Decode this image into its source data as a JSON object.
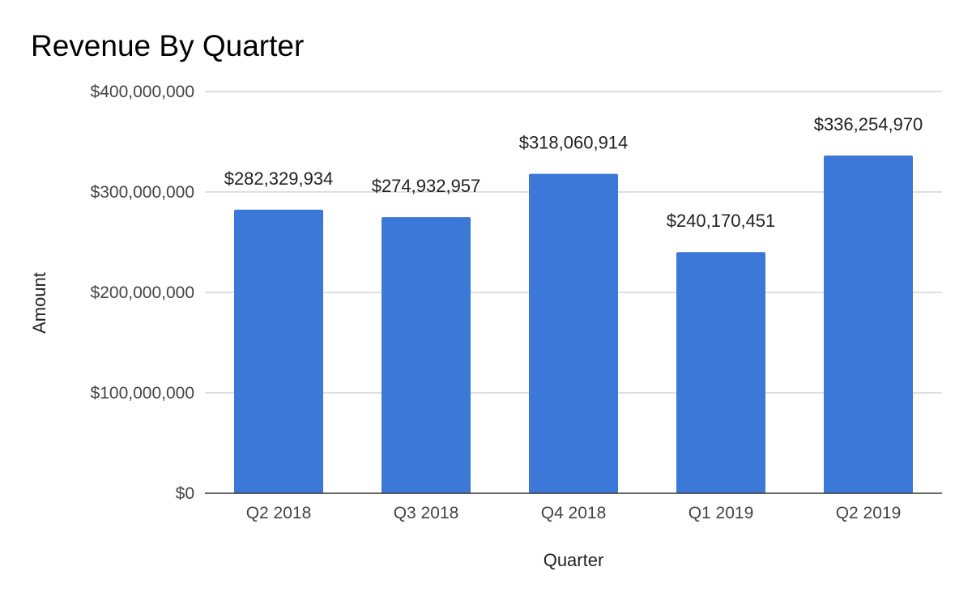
{
  "chart_data": {
    "type": "bar",
    "title": "Revenue By Quarter",
    "xlabel": "Quarter",
    "ylabel": "Amount",
    "categories": [
      "Q2 2018",
      "Q3 2018",
      "Q4 2018",
      "Q1 2019",
      "Q2 2019"
    ],
    "values": [
      282329934,
      274932957,
      318060914,
      240170451,
      336254970
    ],
    "data_labels": [
      "$282,329,934",
      "$274,932,957",
      "$318,060,914",
      "$240,170,451",
      "$336,254,970"
    ],
    "ylim": [
      0,
      400000000
    ],
    "y_ticks": [
      0,
      100000000,
      200000000,
      300000000,
      400000000
    ],
    "y_tick_labels": [
      "$0",
      "$100,000,000",
      "$200,000,000",
      "$300,000,000",
      "$400,000,000"
    ],
    "grid": true,
    "legend": "none",
    "bar_color": "#3c78d8"
  }
}
